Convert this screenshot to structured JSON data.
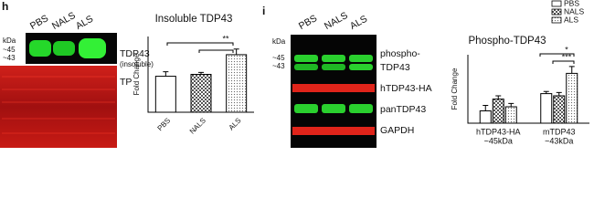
{
  "chart_data": [
    {
      "type": "bar",
      "title": "Insoluble TDP43",
      "y_label": "Fold Change",
      "categories": [
        "PBS",
        "NALS",
        "ALS"
      ],
      "values": [
        0.95,
        1.0,
        1.52
      ],
      "errors": [
        0.12,
        0.05,
        0.15
      ],
      "ylim": [
        0,
        2
      ],
      "annotations": [
        "**"
      ]
    },
    {
      "type": "bar",
      "title": "Phospho-TDP43",
      "y_label": "Fold Change",
      "categories": [
        "hTDP43-HA",
        "mTDP43"
      ],
      "category_sublabels": [
        "~45kDa",
        "~43kDa"
      ],
      "series": [
        {
          "name": "PBS",
          "values": [
            0.45,
            1.08
          ],
          "errors": [
            0.2,
            0.08
          ]
        },
        {
          "name": "NALS",
          "values": [
            0.88,
            1.0
          ],
          "errors": [
            0.12,
            0.12
          ]
        },
        {
          "name": "ALS",
          "values": [
            0.6,
            1.82
          ],
          "errors": [
            0.12,
            0.25
          ]
        }
      ],
      "ylim": [
        0,
        2.5
      ],
      "annotations": [
        "*",
        "***"
      ],
      "legend": "upper right"
    }
  ],
  "blots": {
    "h": {
      "panel": "h",
      "lanes": [
        "PBS",
        "NALS",
        "ALS"
      ],
      "kda": "kDa",
      "markers": [
        "~45",
        "~43"
      ],
      "labels": [
        "TDP43",
        "(insoluble)",
        "TP"
      ]
    },
    "i": {
      "panel": "i",
      "lanes": [
        "PBS",
        "NALS",
        "ALS"
      ],
      "kda": "kDa",
      "markers": [
        "~45",
        "~43"
      ],
      "labels": [
        "phospho-",
        "TDP43",
        "hTDP43-HA",
        "panTDP43",
        "GAPDH"
      ]
    }
  }
}
